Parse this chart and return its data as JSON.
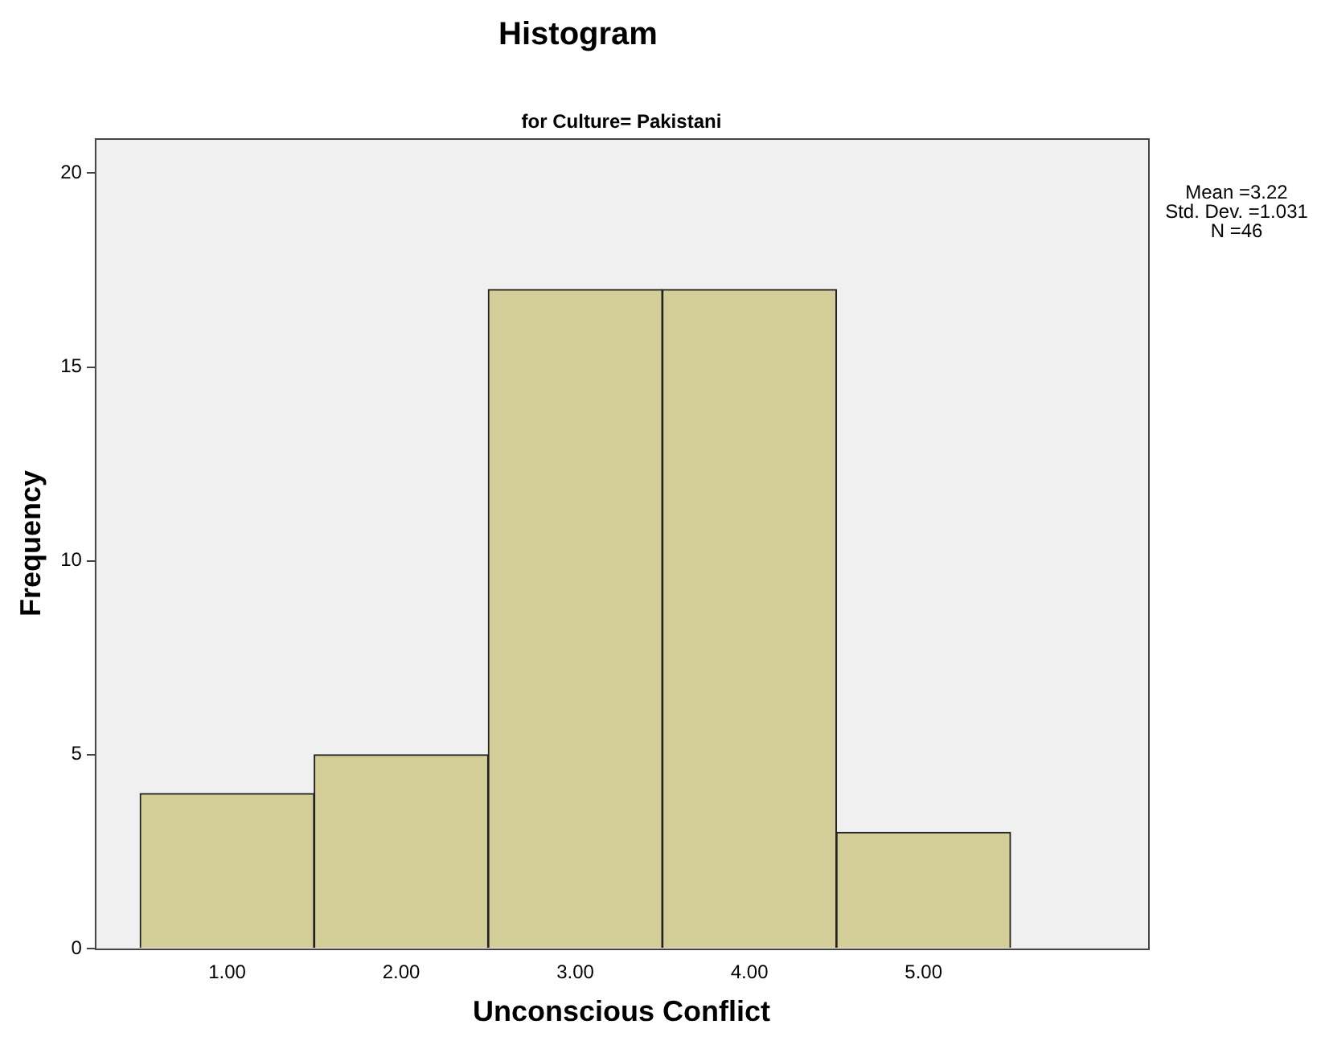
{
  "chart_data": {
    "type": "histogram",
    "title": "Histogram",
    "subtitle": "for Culture= Pakistani",
    "xlabel": "Unconscious Conflict",
    "ylabel": "Frequency",
    "bins": [
      0.5,
      1.5,
      2.5,
      3.5,
      4.5,
      5.5
    ],
    "values": [
      4,
      5,
      17,
      17,
      3
    ],
    "color": "#d3ce98",
    "xlim": [
      0.24,
      6.29
    ],
    "xticks": [
      {
        "value": 1,
        "label": "1.00"
      },
      {
        "value": 2,
        "label": "2.00"
      },
      {
        "value": 3,
        "label": "3.00"
      },
      {
        "value": 4,
        "label": "4.00"
      },
      {
        "value": 5,
        "label": "5.00"
      }
    ],
    "ylim": [
      0,
      20.9
    ],
    "yticks": [
      0,
      5,
      10,
      15,
      20
    ],
    "grid": false,
    "legend": false,
    "annotations": [
      "Mean =3.22",
      "Std. Dev. =1.031",
      "N =46"
    ]
  }
}
